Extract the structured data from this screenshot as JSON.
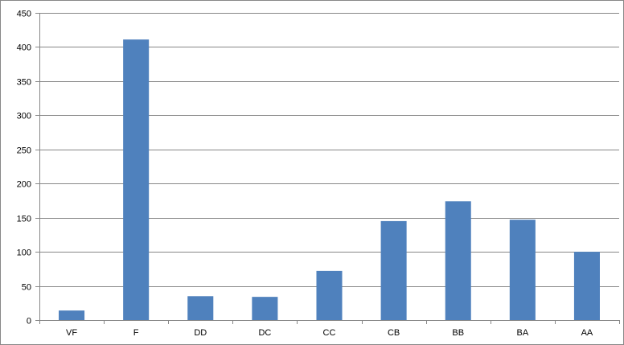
{
  "chart_data": {
    "type": "bar",
    "title": "",
    "xlabel": "",
    "ylabel": "",
    "categories": [
      "VF",
      "F",
      "DD",
      "DC",
      "CC",
      "CB",
      "BB",
      "BA",
      "AA"
    ],
    "values": [
      14,
      411,
      35,
      34,
      72,
      145,
      174,
      147,
      100
    ],
    "ylim": [
      0,
      450
    ],
    "yticks": [
      0,
      50,
      100,
      150,
      200,
      250,
      300,
      350,
      400,
      450
    ],
    "grid": true,
    "legend": "none",
    "bar_color": "#4F81BD",
    "grid_color": "#878787"
  }
}
